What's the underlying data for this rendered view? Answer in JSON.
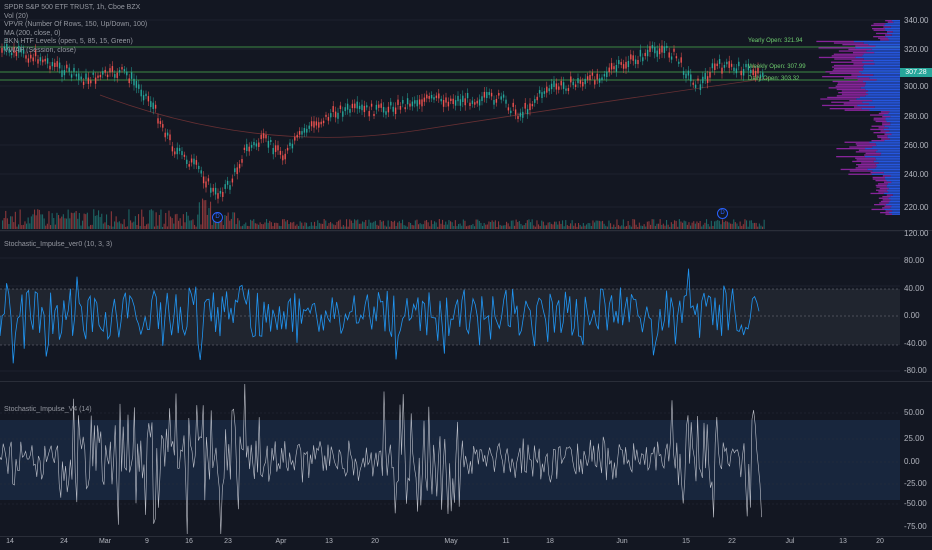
{
  "colors": {
    "background": "#131722",
    "up": "#26a69a",
    "down": "#ef5350",
    "profile_up": "#2962ff",
    "profile_down": "#9c27b0",
    "level_green": "#4caf50",
    "stoch_line": "#2196f3",
    "impulse_line": "#d1d4dc",
    "price_tag": "#26a69a"
  },
  "legend": {
    "title": "SPDR S&P 500 ETF TRUST, 1h, Cboe BZX",
    "vol": "Vol (20)",
    "vpvr": "VPVR (Number Of Rows, 150, Up/Down, 100)",
    "ma": "MA (200, close, 0)",
    "bkn": "BKN HTF Levels (open, 5, 85, 15, Green)",
    "vwap": "VWAP (Session, close)"
  },
  "price_axis": [
    "340.00",
    "320.00",
    "300.00",
    "280.00",
    "260.00",
    "240.00",
    "220.00"
  ],
  "price_tag": "307.28",
  "levels": {
    "yearly": "Yearly Open: 321.94",
    "weekly": "Weekly Open: 307.99",
    "daily": "Daily Open: 303.32"
  },
  "events": {
    "marker1": "D",
    "marker2": "D"
  },
  "stoch_panel": {
    "title": "Stochastic_Impulse_ver0 (10, 3, 3)",
    "axis": [
      "120.00",
      "80.00",
      "40.00",
      "0.00",
      "-40.00",
      "-80.00"
    ]
  },
  "impulse_panel": {
    "title": "Stochastic_Impulse_V4 (14)",
    "axis": [
      "50.00",
      "25.00",
      "0.00",
      "-25.00",
      "-50.00",
      "-75.00"
    ]
  },
  "time_axis": [
    "14",
    "24",
    "Mar",
    "9",
    "16",
    "23",
    "Apr",
    "13",
    "20",
    "May",
    "11",
    "18",
    "Jun",
    "15",
    "22",
    "Jul",
    "13",
    "20"
  ]
}
